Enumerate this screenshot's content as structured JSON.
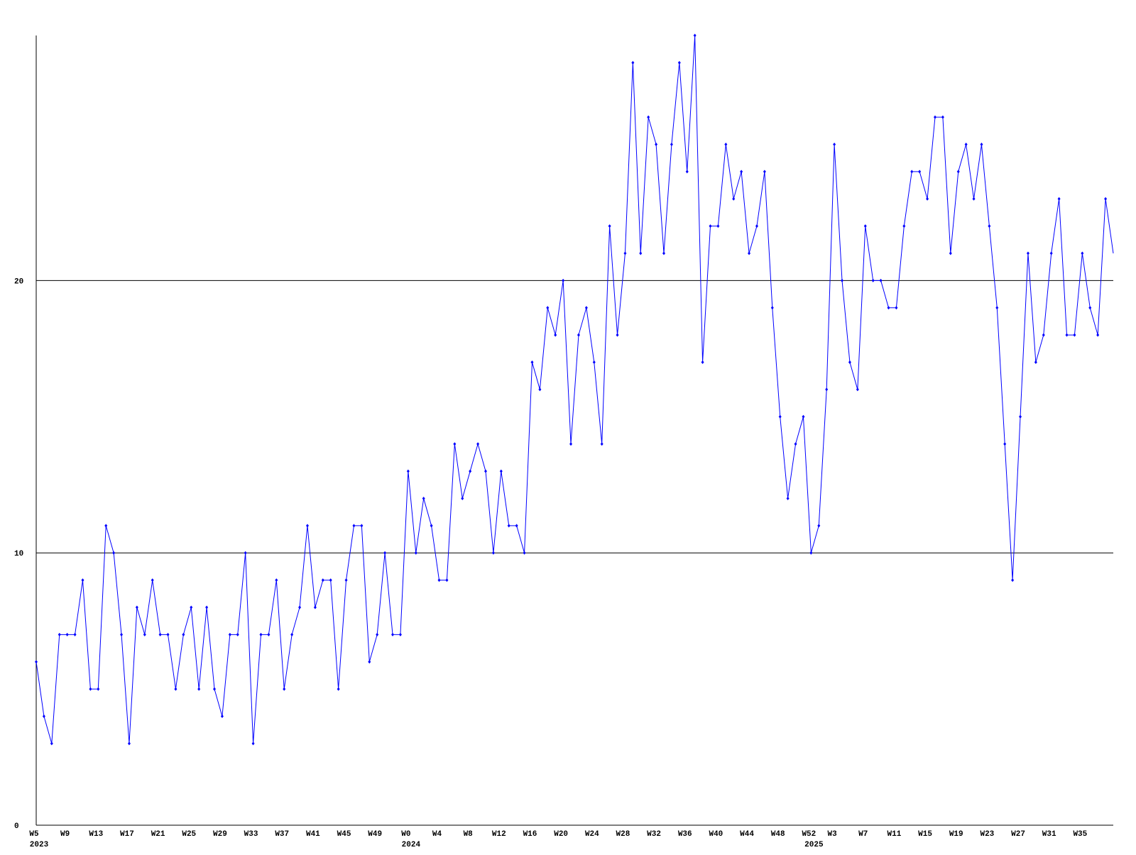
{
  "chart_data": {
    "type": "line",
    "categories": [
      "W5",
      null,
      null,
      null,
      "W9",
      null,
      null,
      null,
      "W13",
      null,
      null,
      null,
      "W17",
      null,
      null,
      null,
      "W21",
      null,
      null,
      null,
      "W25",
      null,
      null,
      null,
      "W29",
      null,
      null,
      null,
      "W33",
      null,
      null,
      null,
      "W37",
      null,
      null,
      null,
      "W41",
      null,
      null,
      null,
      "W45",
      null,
      null,
      null,
      "W49",
      null,
      null,
      null,
      "W0",
      null,
      null,
      null,
      "W4",
      null,
      null,
      null,
      "W8",
      null,
      null,
      null,
      "W12",
      null,
      null,
      null,
      "W16",
      null,
      null,
      null,
      "W20",
      null,
      null,
      null,
      "W24",
      null,
      null,
      null,
      "W28",
      null,
      null,
      null,
      "W32",
      null,
      null,
      null,
      "W36",
      null,
      null,
      null,
      "W40",
      null,
      null,
      null,
      "W44",
      null,
      null,
      null,
      "W48",
      null,
      null,
      null,
      "W52",
      null,
      null,
      "W3",
      null,
      null,
      null,
      "W7",
      null,
      null,
      null,
      "W11",
      null,
      null,
      null,
      "W15",
      null,
      null,
      null,
      "W19",
      null,
      null,
      null,
      "W23",
      null,
      null,
      null,
      "W27",
      null,
      null,
      null,
      "W31",
      null,
      null,
      null,
      "W35",
      null,
      null,
      null,
      null
    ],
    "category_years": [
      "2023",
      null,
      null,
      null,
      null,
      null,
      null,
      null,
      null,
      null,
      null,
      null,
      null,
      null,
      null,
      null,
      null,
      null,
      null,
      null,
      null,
      null,
      null,
      null,
      null,
      null,
      null,
      null,
      null,
      null,
      null,
      null,
      null,
      null,
      null,
      null,
      null,
      null,
      null,
      null,
      null,
      null,
      null,
      null,
      null,
      null,
      null,
      null,
      "2024",
      null,
      null,
      null,
      null,
      null,
      null,
      null,
      null,
      null,
      null,
      null,
      null,
      null,
      null,
      null,
      null,
      null,
      null,
      null,
      null,
      null,
      null,
      null,
      null,
      null,
      null,
      null,
      null,
      null,
      null,
      null,
      null,
      null,
      null,
      null,
      null,
      null,
      null,
      null,
      null,
      null,
      null,
      null,
      null,
      null,
      null,
      null,
      null,
      null,
      null,
      null,
      "2025",
      null,
      null,
      null,
      null,
      null,
      null,
      null,
      null,
      null,
      null,
      null,
      null,
      null,
      null,
      null,
      null,
      null,
      null,
      null,
      null,
      null,
      null,
      null,
      null,
      null,
      null,
      null,
      null,
      null,
      null,
      null,
      null,
      null,
      null,
      null,
      null,
      null,
      null,
      null
    ],
    "series": [
      {
        "color": "#0000ff",
        "values": [
          6,
          4,
          3,
          7,
          7,
          7,
          9,
          5,
          5,
          11,
          10,
          7,
          3,
          8,
          7,
          9,
          7,
          7,
          5,
          7,
          8,
          5,
          8,
          5,
          4,
          7,
          7,
          10,
          3,
          7,
          7,
          9,
          5,
          7,
          8,
          11,
          8,
          9,
          9,
          5,
          9,
          11,
          11,
          6,
          7,
          10,
          7,
          7,
          13,
          10,
          12,
          11,
          9,
          9,
          14,
          12,
          13,
          14,
          13,
          10,
          13,
          11,
          11,
          10,
          17,
          16,
          19,
          18,
          20,
          14,
          18,
          19,
          17,
          14,
          22,
          18,
          21,
          28,
          21,
          26,
          25,
          21,
          25,
          28,
          24,
          29,
          17,
          22,
          22,
          25,
          23,
          24,
          21,
          22,
          24,
          19,
          15,
          12,
          14,
          15,
          10,
          11,
          16,
          25,
          20,
          17,
          16,
          22,
          20,
          20,
          19,
          19,
          22,
          24,
          24,
          23,
          26,
          26,
          21,
          24,
          25,
          23,
          25,
          22,
          19,
          14,
          9,
          15,
          21,
          17,
          18,
          21,
          23,
          18,
          18,
          21,
          19,
          18,
          23,
          21
        ]
      }
    ],
    "ylim": [
      0,
      29
    ],
    "yticks": [
      0,
      10,
      20
    ],
    "grid": true
  }
}
